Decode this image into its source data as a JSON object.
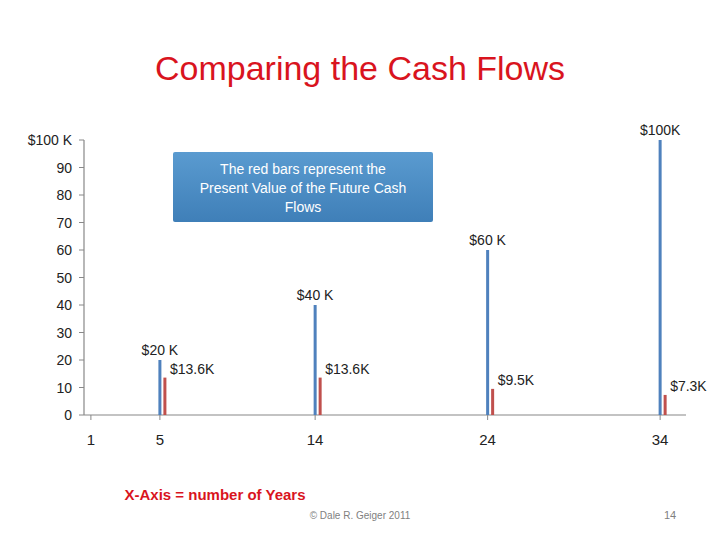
{
  "chart_data": {
    "type": "bar",
    "title": "Comparing the Cash Flows",
    "x_label": "X-Axis = number of Years",
    "annotation": "The red bars represent the Present Value of the Future Cash Flows",
    "footer": "© Dale R. Geiger 2011",
    "page_number": "14",
    "x": [
      5,
      14,
      24,
      34
    ],
    "series": [
      {
        "color": "#4f81bd",
        "values": [
          20,
          40,
          60,
          100
        ],
        "value_labels": [
          "$20 K",
          "$40 K",
          "$60 K",
          "$100K"
        ]
      },
      {
        "color": "#c0504d",
        "values": [
          13.6,
          13.6,
          9.5,
          7.3
        ],
        "value_labels": [
          "$13.6K",
          "$13.6K",
          "$9.5K",
          "$7.3K"
        ]
      }
    ],
    "xlim": [
      0.6,
      35.5
    ],
    "xticks": [
      1,
      5,
      14,
      24,
      34
    ],
    "ylim": [
      0,
      100
    ],
    "yticks": [
      0,
      10,
      20,
      30,
      40,
      50,
      60,
      70,
      80,
      90,
      {
        "value": 100,
        "label": "$100 K"
      }
    ],
    "grid": false,
    "data_labels": true
  }
}
